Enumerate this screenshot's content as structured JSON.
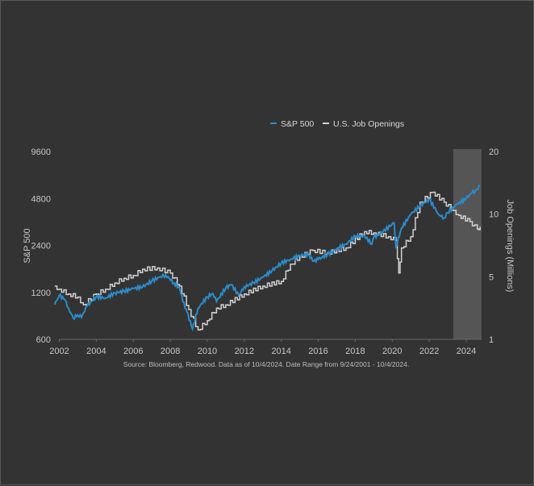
{
  "chart_data": {
    "type": "line",
    "title": "",
    "source": "Source: Bloomberg, Redwood. Data as of 10/4/2024. Date Range from 9/24/2001 - 10/4/2024.",
    "xlabel": "",
    "ylabel": "S&P 500",
    "y2label": "Job Openings (Millions)",
    "xlim": [
      2001.75,
      2024.8
    ],
    "ylim": [
      600,
      9600
    ],
    "y_scale": "log2",
    "y2lim": [
      1,
      20
    ],
    "x_ticks": [
      "2002",
      "2004",
      "2006",
      "2008",
      "2010",
      "2012",
      "2014",
      "2016",
      "2018",
      "2020",
      "2022",
      "2024"
    ],
    "y_ticks": [
      "9600",
      "4800",
      "2400",
      "1200",
      "600"
    ],
    "y2_ticks": [
      "20",
      "10",
      "5",
      "1"
    ],
    "legend": {
      "placement": "top-center",
      "entries": [
        "S&P 500",
        "U.S. Job Openings"
      ]
    },
    "shaded_region": {
      "x_from": 2023.3,
      "x_to": 2024.8,
      "color": "#555555"
    },
    "colors": {
      "sp500": "#2b8ccc",
      "jobs": "#d2d2d2",
      "background": "#333333",
      "text": "#c8c8c8"
    },
    "series": [
      {
        "name": "S&P 500",
        "axis": "left",
        "x": [
          2001.75,
          2002.0,
          2002.3,
          2002.5,
          2002.75,
          2003.0,
          2003.2,
          2003.5,
          2004.0,
          2004.5,
          2005.0,
          2005.5,
          2006.0,
          2006.5,
          2007.0,
          2007.4,
          2007.75,
          2008.2,
          2008.5,
          2008.8,
          2008.9,
          2009.2,
          2009.5,
          2010.0,
          2010.3,
          2010.5,
          2011.0,
          2011.3,
          2011.7,
          2012.0,
          2012.5,
          2013.0,
          2013.5,
          2014.0,
          2014.5,
          2015.0,
          2015.5,
          2015.7,
          2016.0,
          2016.5,
          2017.0,
          2017.5,
          2018.0,
          2018.5,
          2018.9,
          2019.0,
          2019.5,
          2020.1,
          2020.2,
          2020.5,
          2021.0,
          2021.5,
          2022.0,
          2022.5,
          2022.8,
          2023.0,
          2023.5,
          2024.0,
          2024.3,
          2024.5,
          2024.75
        ],
        "values": [
          1000,
          1150,
          1080,
          950,
          820,
          860,
          830,
          980,
          1130,
          1100,
          1190,
          1220,
          1270,
          1300,
          1420,
          1500,
          1550,
          1380,
          1280,
          950,
          900,
          700,
          950,
          1120,
          1180,
          1050,
          1280,
          1350,
          1150,
          1300,
          1380,
          1500,
          1650,
          1850,
          1950,
          2070,
          2100,
          1900,
          1950,
          2100,
          2280,
          2450,
          2750,
          2750,
          2450,
          2700,
          2950,
          3350,
          2350,
          3100,
          3800,
          4300,
          4750,
          3800,
          3600,
          3900,
          4400,
          4800,
          5200,
          5400,
          5750
        ]
      },
      {
        "name": "U.S. Job Openings",
        "axis": "right",
        "unit": "millions",
        "x": [
          2001.75,
          2002.0,
          2002.5,
          2003.0,
          2003.3,
          2004.0,
          2004.5,
          2005.0,
          2005.5,
          2006.0,
          2006.5,
          2007.3,
          2008.0,
          2008.5,
          2009.0,
          2009.5,
          2010.0,
          2010.5,
          2011.0,
          2012.0,
          2013.0,
          2014.0,
          2014.5,
          2015.0,
          2015.7,
          2016.5,
          2017.5,
          2018.5,
          2019.0,
          2019.8,
          2020.2,
          2020.35,
          2020.5,
          2021.0,
          2021.5,
          2022.2,
          2022.8,
          2023.3,
          2023.6,
          2024.2,
          2024.6,
          2024.75
        ],
        "values": [
          4.4,
          4.2,
          3.9,
          3.7,
          3.2,
          3.9,
          4.2,
          4.6,
          4.9,
          5.1,
          5.6,
          5.7,
          5.3,
          4.4,
          2.9,
          1.6,
          2.2,
          3.0,
          3.2,
          3.9,
          4.4,
          4.7,
          6.0,
          6.6,
          7.1,
          6.9,
          7.3,
          8.6,
          8.5,
          8.2,
          7.9,
          5.3,
          7.3,
          8.2,
          11.9,
          13.5,
          11.9,
          10.6,
          9.9,
          9.4,
          8.8,
          9.0
        ]
      }
    ]
  }
}
